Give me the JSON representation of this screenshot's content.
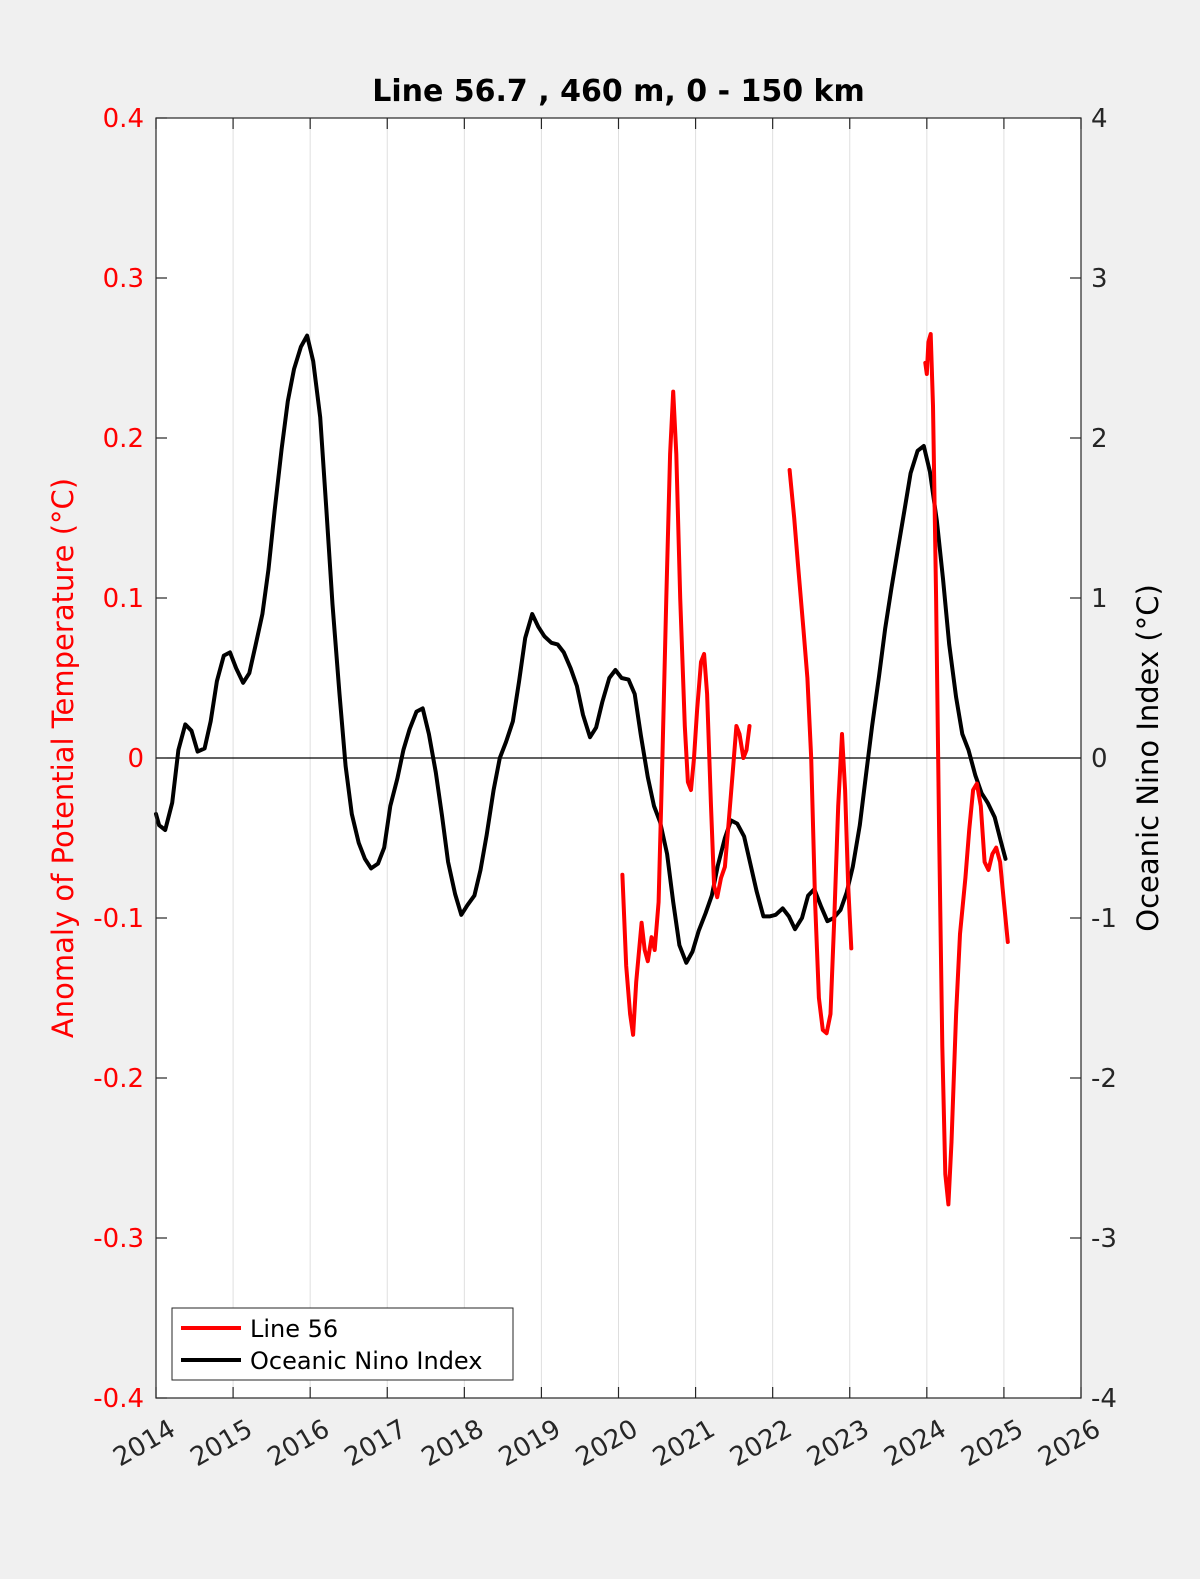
{
  "chart_data": {
    "type": "line",
    "title": "Line 56.7 , 460 m, 0 - 150 km",
    "xlim": [
      2014,
      2026
    ],
    "x_ticks": [
      "2014",
      "2015",
      "2016",
      "2017",
      "2018",
      "2019",
      "2020",
      "2021",
      "2022",
      "2023",
      "2024",
      "2025",
      "2026"
    ],
    "y_left": {
      "label": "Anomaly of Potential Temperature (°C)",
      "lim": [
        -0.4,
        0.4
      ],
      "ticks": [
        "-0.4",
        "-0.3",
        "-0.2",
        "-0.1",
        "0",
        "0.1",
        "0.2",
        "0.3",
        "0.4"
      ],
      "color": "#ff0000"
    },
    "y_right": {
      "label": "Oceanic Nino Index (°C)",
      "lim": [
        -4,
        4
      ],
      "ticks": [
        "-4",
        "-3",
        "-2",
        "-1",
        "0",
        "1",
        "2",
        "3",
        "4"
      ],
      "color": "#000000"
    },
    "grid": "vertical",
    "zero_line": true,
    "legend": {
      "placement": "bottom-left",
      "entries": [
        "Line 56",
        "Oceanic Nino Index"
      ]
    },
    "series": [
      {
        "name": "Line 56",
        "axis": "left",
        "color": "#ff0000",
        "segments": [
          [
            [
              2020.05,
              -0.073
            ],
            [
              2020.1,
              -0.13
            ],
            [
              2020.15,
              -0.16
            ],
            [
              2020.19,
              -0.173
            ],
            [
              2020.23,
              -0.14
            ],
            [
              2020.3,
              -0.103
            ],
            [
              2020.34,
              -0.12
            ],
            [
              2020.38,
              -0.127
            ],
            [
              2020.43,
              -0.112
            ],
            [
              2020.47,
              -0.12
            ],
            [
              2020.52,
              -0.09
            ],
            [
              2020.57,
              0.0
            ],
            [
              2020.62,
              0.1
            ],
            [
              2020.67,
              0.19
            ],
            [
              2020.71,
              0.229
            ],
            [
              2020.75,
              0.19
            ],
            [
              2020.8,
              0.1
            ],
            [
              2020.86,
              0.02
            ],
            [
              2020.9,
              -0.015
            ],
            [
              2020.94,
              -0.02
            ],
            [
              2020.98,
              0.0
            ],
            [
              2021.02,
              0.03
            ],
            [
              2021.07,
              0.06
            ],
            [
              2021.11,
              0.065
            ],
            [
              2021.15,
              0.04
            ],
            [
              2021.2,
              -0.03
            ],
            [
              2021.24,
              -0.08
            ],
            [
              2021.28,
              -0.087
            ],
            [
              2021.33,
              -0.075
            ],
            [
              2021.38,
              -0.068
            ],
            [
              2021.43,
              -0.04
            ],
            [
              2021.48,
              -0.01
            ],
            [
              2021.53,
              0.02
            ],
            [
              2021.57,
              0.015
            ],
            [
              2021.62,
              0.0
            ],
            [
              2021.66,
              0.005
            ],
            [
              2021.7,
              0.02
            ]
          ],
          [
            [
              2022.22,
              0.18
            ],
            [
              2022.28,
              0.15
            ],
            [
              2022.33,
              0.12
            ],
            [
              2022.4,
              0.08
            ],
            [
              2022.45,
              0.05
            ],
            [
              2022.5,
              0.0
            ],
            [
              2022.55,
              -0.09
            ],
            [
              2022.6,
              -0.15
            ],
            [
              2022.65,
              -0.17
            ],
            [
              2022.7,
              -0.172
            ],
            [
              2022.75,
              -0.16
            ],
            [
              2022.8,
              -0.1
            ],
            [
              2022.85,
              -0.03
            ],
            [
              2022.9,
              0.015
            ],
            [
              2022.94,
              -0.02
            ],
            [
              2022.98,
              -0.08
            ],
            [
              2023.02,
              -0.119
            ]
          ],
          [
            [
              2023.98,
              0.247
            ],
            [
              2024.0,
              0.24
            ],
            [
              2024.02,
              0.26
            ],
            [
              2024.05,
              0.265
            ],
            [
              2024.08,
              0.22
            ],
            [
              2024.12,
              0.1
            ],
            [
              2024.16,
              -0.05
            ],
            [
              2024.2,
              -0.18
            ],
            [
              2024.24,
              -0.26
            ],
            [
              2024.28,
              -0.279
            ],
            [
              2024.32,
              -0.24
            ],
            [
              2024.38,
              -0.16
            ],
            [
              2024.43,
              -0.11
            ],
            [
              2024.5,
              -0.075
            ],
            [
              2024.55,
              -0.045
            ],
            [
              2024.6,
              -0.02
            ],
            [
              2024.65,
              -0.016
            ],
            [
              2024.7,
              -0.03
            ],
            [
              2024.75,
              -0.065
            ],
            [
              2024.8,
              -0.07
            ],
            [
              2024.85,
              -0.06
            ],
            [
              2024.9,
              -0.056
            ],
            [
              2024.95,
              -0.065
            ],
            [
              2025.0,
              -0.09
            ],
            [
              2025.05,
              -0.115
            ]
          ]
        ]
      },
      {
        "name": "Oceanic Nino Index",
        "axis": "right",
        "color": "#000000",
        "segments": [
          [
            [
              2014.0,
              -0.35
            ],
            [
              2014.04,
              -0.42
            ],
            [
              2014.12,
              -0.45
            ],
            [
              2014.21,
              -0.28
            ],
            [
              2014.29,
              0.05
            ],
            [
              2014.38,
              0.21
            ],
            [
              2014.46,
              0.17
            ],
            [
              2014.54,
              0.04
            ],
            [
              2014.63,
              0.06
            ],
            [
              2014.71,
              0.23
            ],
            [
              2014.79,
              0.48
            ],
            [
              2014.88,
              0.64
            ],
            [
              2014.96,
              0.66
            ],
            [
              2015.04,
              0.56
            ],
            [
              2015.13,
              0.47
            ],
            [
              2015.21,
              0.53
            ],
            [
              2015.29,
              0.7
            ],
            [
              2015.38,
              0.9
            ],
            [
              2015.46,
              1.18
            ],
            [
              2015.54,
              1.55
            ],
            [
              2015.63,
              1.93
            ],
            [
              2015.71,
              2.23
            ],
            [
              2015.79,
              2.43
            ],
            [
              2015.88,
              2.57
            ],
            [
              2015.96,
              2.64
            ],
            [
              2016.04,
              2.48
            ],
            [
              2016.13,
              2.13
            ],
            [
              2016.21,
              1.55
            ],
            [
              2016.29,
              0.96
            ],
            [
              2016.38,
              0.4
            ],
            [
              2016.46,
              -0.05
            ],
            [
              2016.54,
              -0.35
            ],
            [
              2016.63,
              -0.53
            ],
            [
              2016.71,
              -0.63
            ],
            [
              2016.79,
              -0.69
            ],
            [
              2016.88,
              -0.66
            ],
            [
              2016.96,
              -0.56
            ],
            [
              2017.04,
              -0.3
            ],
            [
              2017.13,
              -0.13
            ],
            [
              2017.21,
              0.05
            ],
            [
              2017.29,
              0.18
            ],
            [
              2017.38,
              0.29
            ],
            [
              2017.46,
              0.31
            ],
            [
              2017.54,
              0.15
            ],
            [
              2017.63,
              -0.09
            ],
            [
              2017.71,
              -0.36
            ],
            [
              2017.79,
              -0.65
            ],
            [
              2017.88,
              -0.85
            ],
            [
              2017.96,
              -0.98
            ],
            [
              2018.04,
              -0.92
            ],
            [
              2018.13,
              -0.86
            ],
            [
              2018.21,
              -0.7
            ],
            [
              2018.29,
              -0.48
            ],
            [
              2018.38,
              -0.2
            ],
            [
              2018.46,
              0.0
            ],
            [
              2018.54,
              0.1
            ],
            [
              2018.63,
              0.23
            ],
            [
              2018.71,
              0.48
            ],
            [
              2018.79,
              0.75
            ],
            [
              2018.88,
              0.9
            ],
            [
              2018.96,
              0.82
            ],
            [
              2019.04,
              0.76
            ],
            [
              2019.13,
              0.72
            ],
            [
              2019.21,
              0.71
            ],
            [
              2019.29,
              0.66
            ],
            [
              2019.38,
              0.56
            ],
            [
              2019.46,
              0.45
            ],
            [
              2019.54,
              0.27
            ],
            [
              2019.63,
              0.13
            ],
            [
              2019.71,
              0.19
            ],
            [
              2019.79,
              0.35
            ],
            [
              2019.88,
              0.5
            ],
            [
              2019.96,
              0.55
            ],
            [
              2020.04,
              0.5
            ],
            [
              2020.13,
              0.49
            ],
            [
              2020.21,
              0.4
            ],
            [
              2020.29,
              0.14
            ],
            [
              2020.38,
              -0.12
            ],
            [
              2020.46,
              -0.3
            ],
            [
              2020.54,
              -0.4
            ],
            [
              2020.63,
              -0.6
            ],
            [
              2020.71,
              -0.9
            ],
            [
              2020.79,
              -1.17
            ],
            [
              2020.88,
              -1.28
            ],
            [
              2020.96,
              -1.21
            ],
            [
              2021.04,
              -1.08
            ],
            [
              2021.13,
              -0.97
            ],
            [
              2021.21,
              -0.86
            ],
            [
              2021.29,
              -0.67
            ],
            [
              2021.38,
              -0.5
            ],
            [
              2021.46,
              -0.39
            ],
            [
              2021.54,
              -0.41
            ],
            [
              2021.63,
              -0.49
            ],
            [
              2021.71,
              -0.66
            ],
            [
              2021.79,
              -0.83
            ],
            [
              2021.88,
              -0.99
            ],
            [
              2021.96,
              -0.99
            ],
            [
              2022.04,
              -0.98
            ],
            [
              2022.13,
              -0.94
            ],
            [
              2022.21,
              -0.99
            ],
            [
              2022.29,
              -1.07
            ],
            [
              2022.38,
              -1.0
            ],
            [
              2022.46,
              -0.86
            ],
            [
              2022.54,
              -0.82
            ],
            [
              2022.63,
              -0.93
            ],
            [
              2022.71,
              -1.02
            ],
            [
              2022.79,
              -1.0
            ],
            [
              2022.88,
              -0.95
            ],
            [
              2022.96,
              -0.84
            ],
            [
              2023.04,
              -0.68
            ],
            [
              2023.13,
              -0.42
            ],
            [
              2023.21,
              -0.11
            ],
            [
              2023.29,
              0.2
            ],
            [
              2023.38,
              0.51
            ],
            [
              2023.46,
              0.81
            ],
            [
              2023.54,
              1.06
            ],
            [
              2023.63,
              1.32
            ],
            [
              2023.71,
              1.55
            ],
            [
              2023.79,
              1.78
            ],
            [
              2023.88,
              1.92
            ],
            [
              2023.96,
              1.95
            ],
            [
              2024.04,
              1.79
            ],
            [
              2024.13,
              1.48
            ],
            [
              2024.21,
              1.12
            ],
            [
              2024.29,
              0.71
            ],
            [
              2024.38,
              0.38
            ],
            [
              2024.46,
              0.15
            ],
            [
              2024.54,
              0.05
            ],
            [
              2024.63,
              -0.11
            ],
            [
              2024.71,
              -0.22
            ],
            [
              2024.79,
              -0.28
            ],
            [
              2024.88,
              -0.37
            ],
            [
              2024.96,
              -0.52
            ],
            [
              2025.02,
              -0.63
            ]
          ]
        ]
      }
    ]
  }
}
